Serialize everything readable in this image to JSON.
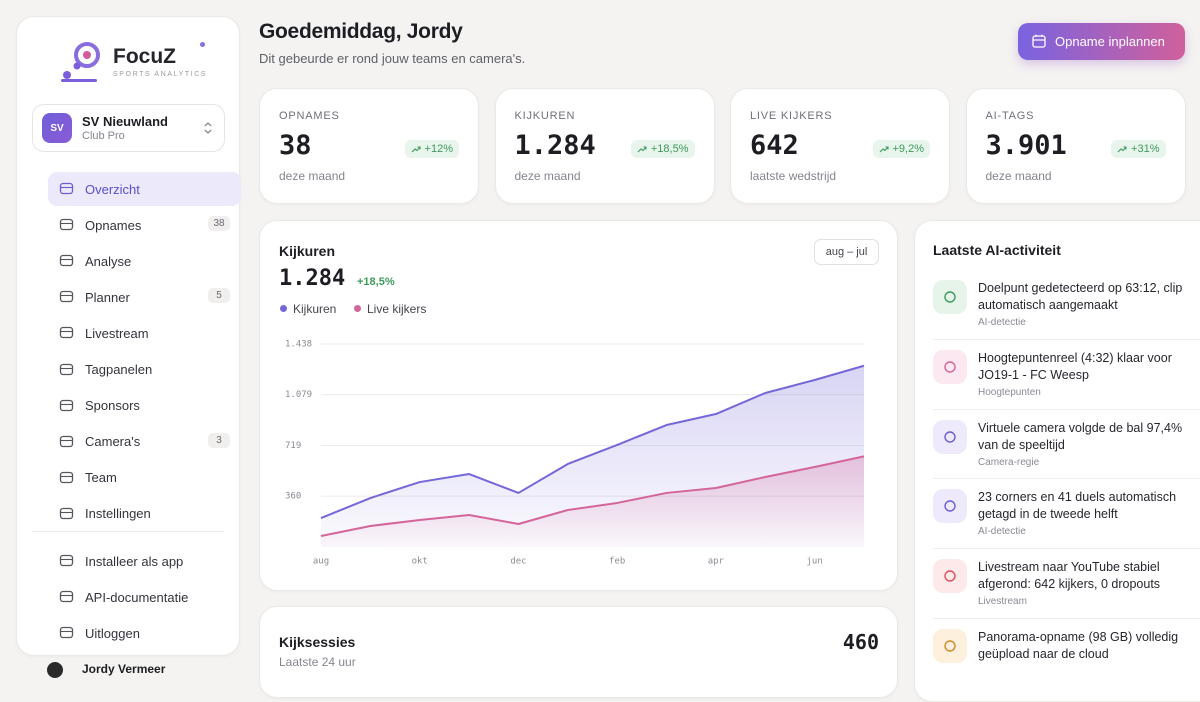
{
  "brand": {
    "name": "FocuZ",
    "tagline": "SPORTS ANALYTICS"
  },
  "club": {
    "initials": "SV",
    "name": "SV Nieuwland",
    "plan": "Club Pro"
  },
  "nav": [
    {
      "label": "Overzicht"
    },
    {
      "label": "Opnames",
      "badge": 38
    },
    {
      "label": "Analyse"
    },
    {
      "label": "Planner",
      "badge": 5
    },
    {
      "label": "Livestream"
    },
    {
      "label": "Tagpanelen"
    },
    {
      "label": "Sponsors"
    },
    {
      "label": "Camera's",
      "badge": 3
    },
    {
      "label": "Team"
    },
    {
      "label": "Instellingen"
    }
  ],
  "footer_nav": [
    {
      "label": "Installeer als app"
    },
    {
      "label": "API-documentatie"
    },
    {
      "label": "Uitloggen"
    }
  ],
  "user": {
    "name": "Jordy Vermeer"
  },
  "header": {
    "greeting": "Goedemiddag, Jordy",
    "subtitle": "Dit gebeurde er rond jouw teams en camera's.",
    "button": "Opname inplannen"
  },
  "stats": [
    {
      "label": "OPNAMES",
      "value": "38",
      "change": "+12%",
      "note": "deze maand"
    },
    {
      "label": "KIJKUREN",
      "value": "1.284",
      "change": "+18,5%",
      "note": "deze maand"
    },
    {
      "label": "LIVE KIJKERS",
      "value": "642",
      "change": "+9,2%",
      "note": "laatste wedstrijd"
    },
    {
      "label": "AI-TAGS",
      "value": "3.901",
      "change": "+31%",
      "note": "deze maand"
    }
  ],
  "chart_card": {
    "total": "1.284",
    "change": "+18,5%",
    "range": "aug – jul"
  },
  "chart_data": {
    "type": "area",
    "title": "Kijkuren",
    "categories": [
      "aug",
      null,
      "okt",
      null,
      "dec",
      null,
      "feb",
      null,
      "apr",
      null,
      "jun",
      null
    ],
    "series": [
      {
        "name": "Kijkuren",
        "color": "#7467d9",
        "values": [
          205,
          347,
          460,
          517,
          383,
          588,
          723,
          864,
          942,
          1091,
          1183,
          1284
        ]
      },
      {
        "name": "Live kijkers",
        "color": "#d4659a",
        "values": [
          78,
          149,
          191,
          227,
          163,
          262,
          312,
          383,
          418,
          496,
          567,
          642
        ]
      }
    ],
    "ylim": [
      0,
      1438
    ],
    "yticks": [
      360,
      719,
      {
        "value": 1079,
        "label": "1.079"
      },
      {
        "value": 1438,
        "label": "1.438"
      }
    ],
    "grid": true
  },
  "sessions": {
    "title": "Kijksessies",
    "subtitle": "Laatste 24 uur",
    "value": "460"
  },
  "activity": {
    "title": "Laatste AI-activiteit",
    "items": [
      {
        "title": "Doelpunt gedetecteerd op 63:12, clip automatisch aangemaakt",
        "category": "AI-detectie"
      },
      {
        "title": "Hoogtepuntenreel (4:32) klaar voor JO19-1 - FC Weesp",
        "category": "Hoogtepunten"
      },
      {
        "title": "Virtuele camera volgde de bal 97,4% van de speeltijd",
        "category": "Camera-regie"
      },
      {
        "title": "23 corners en 41 duels automatisch getagd in de tweede helft",
        "category": "AI-detectie"
      },
      {
        "title": "Livestream naar YouTube stabiel afgerond: 642 kijkers, 0 dropouts",
        "category": "Livestream"
      },
      {
        "title": "Panorama-opname (98 GB) volledig geüpload naar de cloud"
      }
    ]
  }
}
